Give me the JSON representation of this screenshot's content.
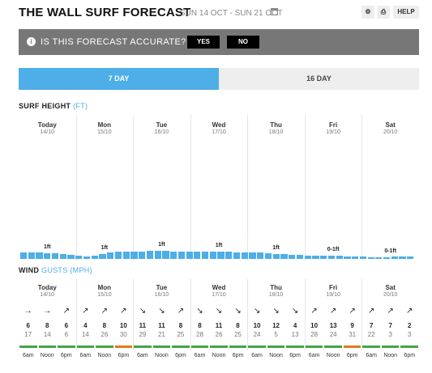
{
  "header": {
    "title": "THE WALL SURF FORECAST",
    "date_range": "SUN 14 OCT - SUN 21 OCT",
    "help_label": "HELP",
    "icons": [
      "gear-icon",
      "print-icon",
      "calendar-icon"
    ]
  },
  "banner": {
    "question": "IS THIS FORECAST ACCURATE?",
    "yes_label": "YES",
    "no_label": "NO"
  },
  "tabs": [
    {
      "label": "7 DAY",
      "active": true
    },
    {
      "label": "16 DAY",
      "active": false
    }
  ],
  "surf": {
    "label": "SURF HEIGHT",
    "unit": "(FT)",
    "days": [
      {
        "name": "Today",
        "date": "14/10",
        "height": "1ft"
      },
      {
        "name": "Mon",
        "date": "15/10",
        "height": "1ft"
      },
      {
        "name": "Tue",
        "date": "16/10",
        "height": "1ft"
      },
      {
        "name": "Wed",
        "date": "17/10",
        "height": "1ft"
      },
      {
        "name": "Thu",
        "date": "18/10",
        "height": "1ft"
      },
      {
        "name": "Fri",
        "date": "19/10",
        "height": "0-1ft"
      },
      {
        "name": "Sat",
        "date": "20/10",
        "height": "0-1ft"
      }
    ],
    "bar_values_ft": [
      0.9,
      0.9,
      0.9,
      0.8,
      0.8,
      0.7,
      0.6,
      0.5,
      0.3,
      0.5,
      0.7,
      0.9,
      1.0,
      1.0,
      1.0,
      1.0,
      1.1,
      1.1,
      1.1,
      1.0,
      1.0,
      1.0,
      1.0,
      1.0,
      1.0,
      1.0,
      1.0,
      0.9,
      0.9,
      0.9,
      0.9,
      0.8,
      0.7,
      0.7,
      0.6,
      0.6,
      0.5,
      0.5,
      0.4,
      0.4,
      0.4,
      0.3,
      0.3,
      0.3,
      0.2,
      0.2,
      0.2,
      0.3,
      0.3,
      0.3
    ]
  },
  "wind": {
    "label": "WIND",
    "gusts_label": "GUSTS",
    "unit": "(MPH)",
    "days": [
      {
        "name": "Today",
        "date": "14/10"
      },
      {
        "name": "Mon",
        "date": "15/10"
      },
      {
        "name": "Tue",
        "date": "16/10"
      },
      {
        "name": "Wed",
        "date": "17/10"
      },
      {
        "name": "Thu",
        "date": "18/10"
      },
      {
        "name": "Fri",
        "date": "19/10"
      },
      {
        "name": "Sat",
        "date": "20/10"
      }
    ],
    "time_labels": [
      "6am",
      "Noon",
      "6pm"
    ],
    "slots": [
      {
        "arrow": "→",
        "speed": "6",
        "gust": "17",
        "color": "#44a547"
      },
      {
        "arrow": "→",
        "speed": "8",
        "gust": "14",
        "color": "#44a547"
      },
      {
        "arrow": "↗",
        "speed": "6",
        "gust": "6",
        "color": "#44a547"
      },
      {
        "arrow": "↗",
        "speed": "4",
        "gust": "14",
        "color": "#44a547"
      },
      {
        "arrow": "↗",
        "speed": "8",
        "gust": "26",
        "color": "#44a547"
      },
      {
        "arrow": "↗",
        "speed": "10",
        "gust": "30",
        "color": "#e07b1a"
      },
      {
        "arrow": "↘",
        "speed": "11",
        "gust": "29",
        "color": "#44a547"
      },
      {
        "arrow": "↘",
        "speed": "11",
        "gust": "21",
        "color": "#44a547"
      },
      {
        "arrow": "↗",
        "speed": "8",
        "gust": "25",
        "color": "#44a547"
      },
      {
        "arrow": "↘",
        "speed": "8",
        "gust": "28",
        "color": "#44a547"
      },
      {
        "arrow": "↘",
        "speed": "11",
        "gust": "26",
        "color": "#44a547"
      },
      {
        "arrow": "↘",
        "speed": "8",
        "gust": "25",
        "color": "#44a547"
      },
      {
        "arrow": "↘",
        "speed": "10",
        "gust": "24",
        "color": "#44a547"
      },
      {
        "arrow": "↘",
        "speed": "12",
        "gust": "5",
        "color": "#44a547"
      },
      {
        "arrow": "↘",
        "speed": "4",
        "gust": "13",
        "color": "#44a547"
      },
      {
        "arrow": "↗",
        "speed": "10",
        "gust": "28",
        "color": "#44a547"
      },
      {
        "arrow": "↗",
        "speed": "13",
        "gust": "24",
        "color": "#44a547"
      },
      {
        "arrow": "↗",
        "speed": "9",
        "gust": "31",
        "color": "#e07b1a"
      },
      {
        "arrow": "↗",
        "speed": "7",
        "gust": "22",
        "color": "#44a547"
      },
      {
        "arrow": "↗",
        "speed": "7",
        "gust": "3",
        "color": "#44a547"
      },
      {
        "arrow": "↗",
        "speed": "2",
        "gust": "3",
        "color": "#44a547"
      }
    ]
  },
  "colors": {
    "accent": "#4daee8",
    "banner_bg": "#777777",
    "wind_ok": "#44a547",
    "wind_strong": "#e07b1a"
  }
}
